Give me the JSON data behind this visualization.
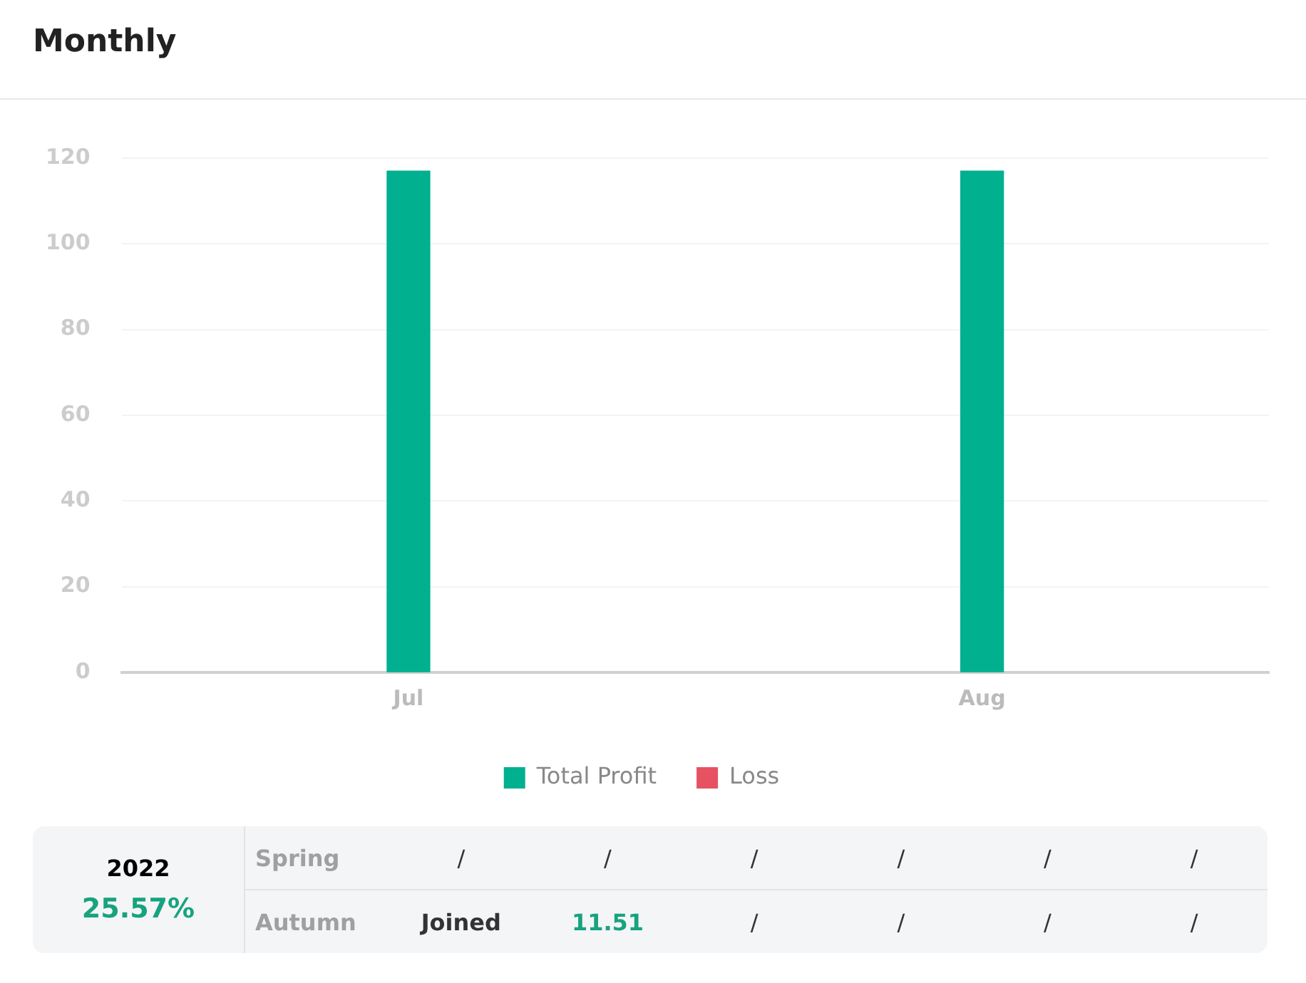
{
  "chart_data": {
    "type": "bar",
    "title": "Monthly",
    "categories": [
      "Jul",
      "Aug"
    ],
    "series": [
      {
        "name": "Total Profit",
        "color": "#00b08f",
        "values": [
          117,
          117
        ]
      },
      {
        "name": "Loss",
        "color": "#e65261",
        "values": [
          null,
          null
        ]
      }
    ],
    "ylim": [
      0,
      120
    ],
    "yticks": [
      0,
      20,
      40,
      60,
      80,
      100,
      120
    ],
    "grid": "y",
    "legend": "bottom",
    "annotations": [
      "2022",
      "25.57%",
      "Spring",
      "/",
      "/",
      "/",
      "/",
      "/",
      "/",
      "Autumn",
      "Joined",
      "11.51",
      "/",
      "/",
      "/",
      "/"
    ]
  }
}
